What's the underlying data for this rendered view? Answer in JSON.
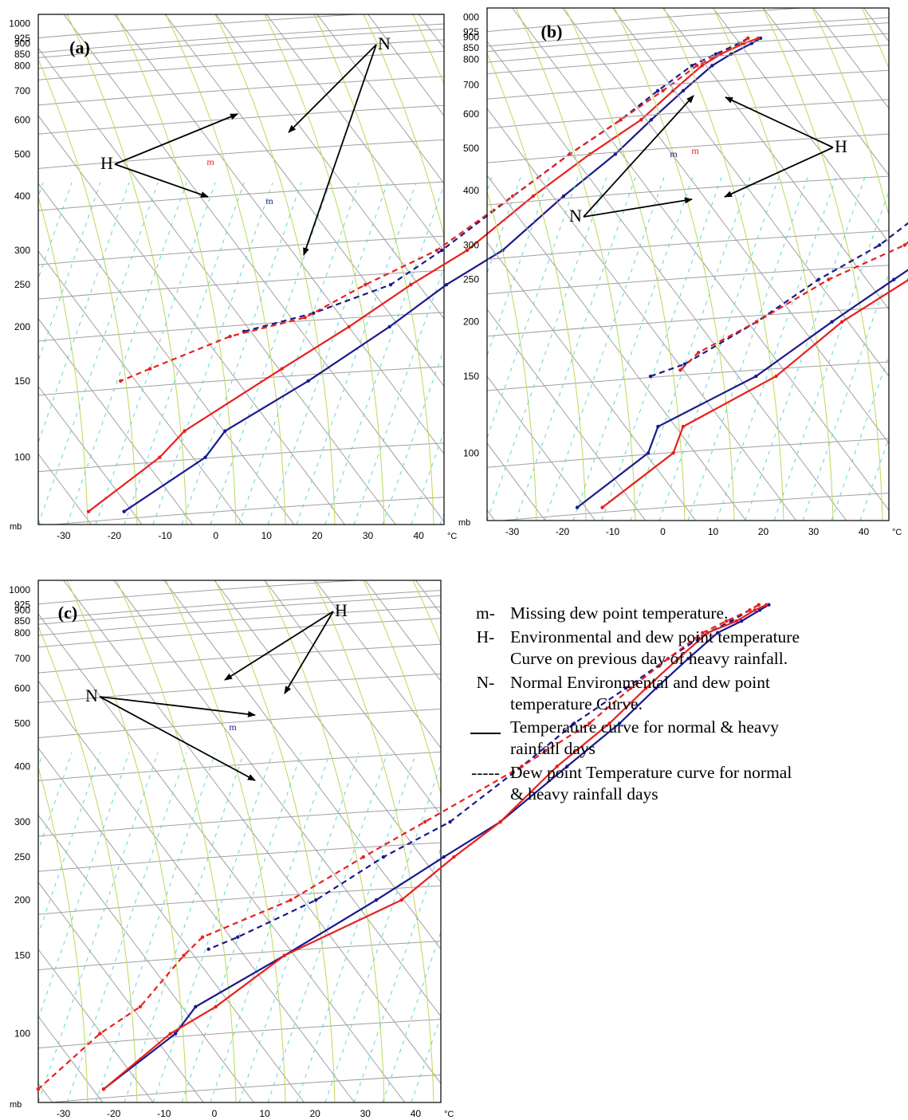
{
  "colors": {
    "normal_series": "#1a1a8c",
    "heavy_series": "#e8201c",
    "isotherm_skew": "#a0a0a0",
    "isobar": "#a0a0a0",
    "dry_adiabat": "#bcd85a",
    "mixing_ratio": "#5fd3d3"
  },
  "chart_data": [
    {
      "type": "line",
      "subtype": "skew-T log-P diagram",
      "panel_label": "(a)",
      "xlabel": "°C",
      "ylabel": "mb",
      "xlim": [
        -35,
        45
      ],
      "ylim_mb": [
        1050,
        70
      ],
      "x_ticks": [
        "-30",
        "-20",
        "-10",
        "0",
        "10",
        "20",
        "30",
        "40"
      ],
      "y_ticks": [
        "100",
        "150",
        "200",
        "250",
        "300",
        "400",
        "500",
        "600",
        "700",
        "800",
        "850",
        "900",
        "925",
        "1000"
      ],
      "annotations": [
        {
          "text": "N",
          "targets": [
            "normal temperature (upper)",
            "normal dew point"
          ]
        },
        {
          "text": "H",
          "targets": [
            "heavy-rain temperature (upper)",
            "heavy-rain dew point"
          ]
        },
        {
          "text": "m",
          "series": "heavy"
        },
        {
          "text": "m",
          "series": "normal"
        }
      ],
      "series": [
        {
          "name": "N temperature",
          "style": "solid",
          "color": "normal",
          "points": [
            [
              35.5,
              925
            ],
            [
              34.5,
              900
            ],
            [
              32,
              850
            ],
            [
              30,
              800
            ],
            [
              28,
              700
            ],
            [
              26,
              600
            ],
            [
              24,
              500
            ],
            [
              20,
              400
            ],
            [
              16,
              300
            ],
            [
              10,
              250
            ],
            [
              5,
              200
            ],
            [
              -3,
              150
            ],
            [
              -12,
              115
            ],
            [
              -12,
              100
            ],
            [
              -20,
              75
            ]
          ]
        },
        {
          "name": "N dew point",
          "style": "dashed",
          "color": "normal",
          "points": [
            [
              33,
              925
            ],
            [
              32,
              900
            ],
            [
              29,
              850
            ],
            [
              26,
              800
            ],
            [
              23,
              700
            ],
            [
              20,
              600
            ],
            [
              15,
              500
            ],
            [
              10,
              400
            ],
            [
              4,
              300
            ],
            [
              -1,
              250
            ],
            [
              -12,
              215
            ],
            [
              -23,
              195
            ]
          ]
        },
        {
          "name": "H temperature",
          "style": "solid",
          "color": "heavy",
          "points": [
            [
              35,
              925
            ],
            [
              33,
              900
            ],
            [
              30,
              850
            ],
            [
              28,
              800
            ],
            [
              26,
              700
            ],
            [
              24,
              600
            ],
            [
              19,
              500
            ],
            [
              14,
              400
            ],
            [
              9,
              300
            ],
            [
              3,
              250
            ],
            [
              -3,
              200
            ],
            [
              -10,
              160
            ],
            [
              -20,
              115
            ],
            [
              -21,
              100
            ],
            [
              -27,
              75
            ]
          ]
        },
        {
          "name": "H dew point",
          "style": "dashed",
          "color": "heavy",
          "points": [
            [
              33,
              925
            ],
            [
              32.5,
              900
            ],
            [
              30,
              850
            ],
            [
              27,
              800
            ],
            [
              24,
              700
            ],
            [
              20,
              600
            ],
            [
              15,
              500
            ],
            [
              10,
              400
            ],
            [
              3,
              300
            ],
            [
              -6,
              250
            ],
            [
              -13,
              210
            ],
            [
              -25,
              190
            ],
            [
              -36,
              160
            ],
            [
              -40,
              150
            ]
          ]
        }
      ]
    },
    {
      "type": "line",
      "subtype": "skew-T log-P diagram",
      "panel_label": "(b)",
      "xlabel": "°C",
      "ylabel": "mb",
      "xlim": [
        -35,
        45
      ],
      "ylim_mb": [
        1050,
        70
      ],
      "x_ticks": [
        "-30",
        "-20",
        "-10",
        "0",
        "10",
        "20",
        "30",
        "40"
      ],
      "y_ticks": [
        "100",
        "150",
        "200",
        "250",
        "300",
        "400",
        "500",
        "600",
        "700",
        "800",
        "850",
        "900",
        "925",
        "000"
      ],
      "annotations": [
        {
          "text": "H",
          "targets": [
            "heavy-rain temperature (upper)",
            "heavy-rain dew point"
          ]
        },
        {
          "text": "N",
          "targets": [
            "normal temperature (upper)",
            "normal dew point"
          ]
        },
        {
          "text": "m",
          "series": "normal"
        },
        {
          "text": "m",
          "series": "heavy"
        }
      ],
      "series": [
        {
          "name": "N temperature",
          "style": "solid",
          "color": "normal",
          "points": [
            [
              35,
              925
            ],
            [
              34,
              900
            ],
            [
              32,
              850
            ],
            [
              30,
              800
            ],
            [
              28,
              700
            ],
            [
              26,
              600
            ],
            [
              24,
              500
            ],
            [
              20,
              400
            ],
            [
              15,
              300
            ],
            [
              10,
              250
            ],
            [
              4,
              200
            ],
            [
              -3,
              150
            ],
            [
              -15,
              115
            ],
            [
              -13,
              100
            ],
            [
              -19,
              75
            ]
          ]
        },
        {
          "name": "N dew point",
          "style": "dashed",
          "color": "normal",
          "points": [
            [
              33,
              925
            ],
            [
              31.5,
              900
            ],
            [
              29,
              850
            ],
            [
              26,
              800
            ],
            [
              22,
              700
            ],
            [
              18,
              600
            ],
            [
              14,
              500
            ],
            [
              8,
              400
            ],
            [
              2,
              300
            ],
            [
              -5,
              250
            ],
            [
              -11,
              200
            ],
            [
              -19,
              160
            ],
            [
              -24,
              150
            ]
          ]
        },
        {
          "name": "H temperature",
          "style": "solid",
          "color": "heavy",
          "points": [
            [
              35,
              925
            ],
            [
              34.5,
              900
            ],
            [
              33,
              850
            ],
            [
              31,
              800
            ],
            [
              29,
              700
            ],
            [
              29,
              600
            ],
            [
              27,
              500
            ],
            [
              23,
              400
            ],
            [
              17,
              300
            ],
            [
              13,
              250
            ],
            [
              6,
              200
            ],
            [
              1,
              150
            ],
            [
              -10,
              115
            ],
            [
              -8,
              100
            ],
            [
              -14,
              75
            ]
          ]
        },
        {
          "name": "H dew point",
          "style": "dashed",
          "color": "heavy",
          "points": [
            [
              33,
              925
            ],
            [
              32,
              900
            ],
            [
              30,
              850
            ],
            [
              27,
              800
            ],
            [
              24,
              700
            ],
            [
              21,
              600
            ],
            [
              17,
              500
            ],
            [
              12,
              400
            ],
            [
              7,
              300
            ],
            [
              -3,
              250
            ],
            [
              -11,
              200
            ],
            [
              -18,
              170
            ],
            [
              -19,
              155
            ]
          ]
        }
      ]
    },
    {
      "type": "line",
      "subtype": "skew-T log-P diagram",
      "panel_label": "(c)",
      "xlabel": "°C",
      "ylabel": "mb",
      "xlim": [
        -35,
        45
      ],
      "ylim_mb": [
        1050,
        70
      ],
      "x_ticks": [
        "-30",
        "-20",
        "-10",
        "0",
        "10",
        "20",
        "30",
        "40"
      ],
      "y_ticks": [
        "100",
        "150",
        "200",
        "250",
        "300",
        "400",
        "500",
        "600",
        "700",
        "800",
        "850",
        "900",
        "925",
        "1000"
      ],
      "annotations": [
        {
          "text": "H",
          "targets": [
            "heavy-rain dew point (upper)",
            "heavy-rain temperature (upper)"
          ]
        },
        {
          "text": "N",
          "targets": [
            "normal temperature (upper)",
            "normal dew point"
          ]
        },
        {
          "text": "m",
          "series": "normal"
        }
      ],
      "series": [
        {
          "name": "N temperature",
          "style": "solid",
          "color": "normal",
          "points": [
            [
              36,
              925
            ],
            [
              35,
              900
            ],
            [
              33,
              850
            ],
            [
              30,
              800
            ],
            [
              28,
              700
            ],
            [
              26,
              600
            ],
            [
              24,
              500
            ],
            [
              20,
              400
            ],
            [
              15,
              300
            ],
            [
              9,
              250
            ],
            [
              2,
              200
            ],
            [
              -8,
              150
            ],
            [
              -18,
              115
            ],
            [
              -18,
              100
            ],
            [
              -24,
              75
            ]
          ]
        },
        {
          "name": "N dew point",
          "style": "dashed",
          "color": "normal",
          "points": [
            [
              34,
              925
            ],
            [
              33,
              900
            ],
            [
              31,
              850
            ],
            [
              28,
              800
            ],
            [
              24,
              700
            ],
            [
              20,
              600
            ],
            [
              15,
              500
            ],
            [
              11,
              400
            ],
            [
              5,
              300
            ],
            [
              -3,
              250
            ],
            [
              -10,
              200
            ],
            [
              -20,
              165
            ],
            [
              -24,
              155
            ]
          ]
        },
        {
          "name": "H temperature",
          "style": "solid",
          "color": "heavy",
          "points": [
            [
              35.5,
              925
            ],
            [
              34,
              900
            ],
            [
              32,
              850
            ],
            [
              28,
              800
            ],
            [
              26,
              700
            ],
            [
              24,
              600
            ],
            [
              22,
              500
            ],
            [
              18,
              400
            ],
            [
              15,
              300
            ],
            [
              11,
              250
            ],
            [
              7,
              200
            ],
            [
              -8,
              150
            ],
            [
              -14,
              115
            ],
            [
              -19,
              100
            ],
            [
              -24,
              75
            ]
          ]
        },
        {
          "name": "H dew point",
          "style": "dashed",
          "color": "heavy",
          "points": [
            [
              34,
              925
            ],
            [
              33,
              900
            ],
            [
              30,
              850
            ],
            [
              27,
              800
            ],
            [
              24,
              700
            ],
            [
              21,
              600
            ],
            [
              18,
              500
            ],
            [
              11,
              400
            ],
            [
              0,
              300
            ],
            [
              -7,
              250
            ],
            [
              -15,
              200
            ],
            [
              -27,
              165
            ],
            [
              -28,
              150
            ],
            [
              -29,
              115
            ],
            [
              -33,
              100
            ],
            [
              -37,
              75
            ]
          ]
        }
      ]
    }
  ],
  "legend": [
    {
      "key": "m-",
      "text": "Missing dew point temperature."
    },
    {
      "key": "H-",
      "text": "Environmental and dew point temperature\nCurve on previous day of heavy rainfall."
    },
    {
      "key": "N-",
      "text": "Normal Environmental and dew point\n temperature Curve."
    },
    {
      "key": "solid-line",
      "text": "Temperature curve for normal & heavy\n rainfall days"
    },
    {
      "key": "-----",
      "text": " Dew point Temperature curve for normal\n& heavy rainfall days"
    }
  ]
}
